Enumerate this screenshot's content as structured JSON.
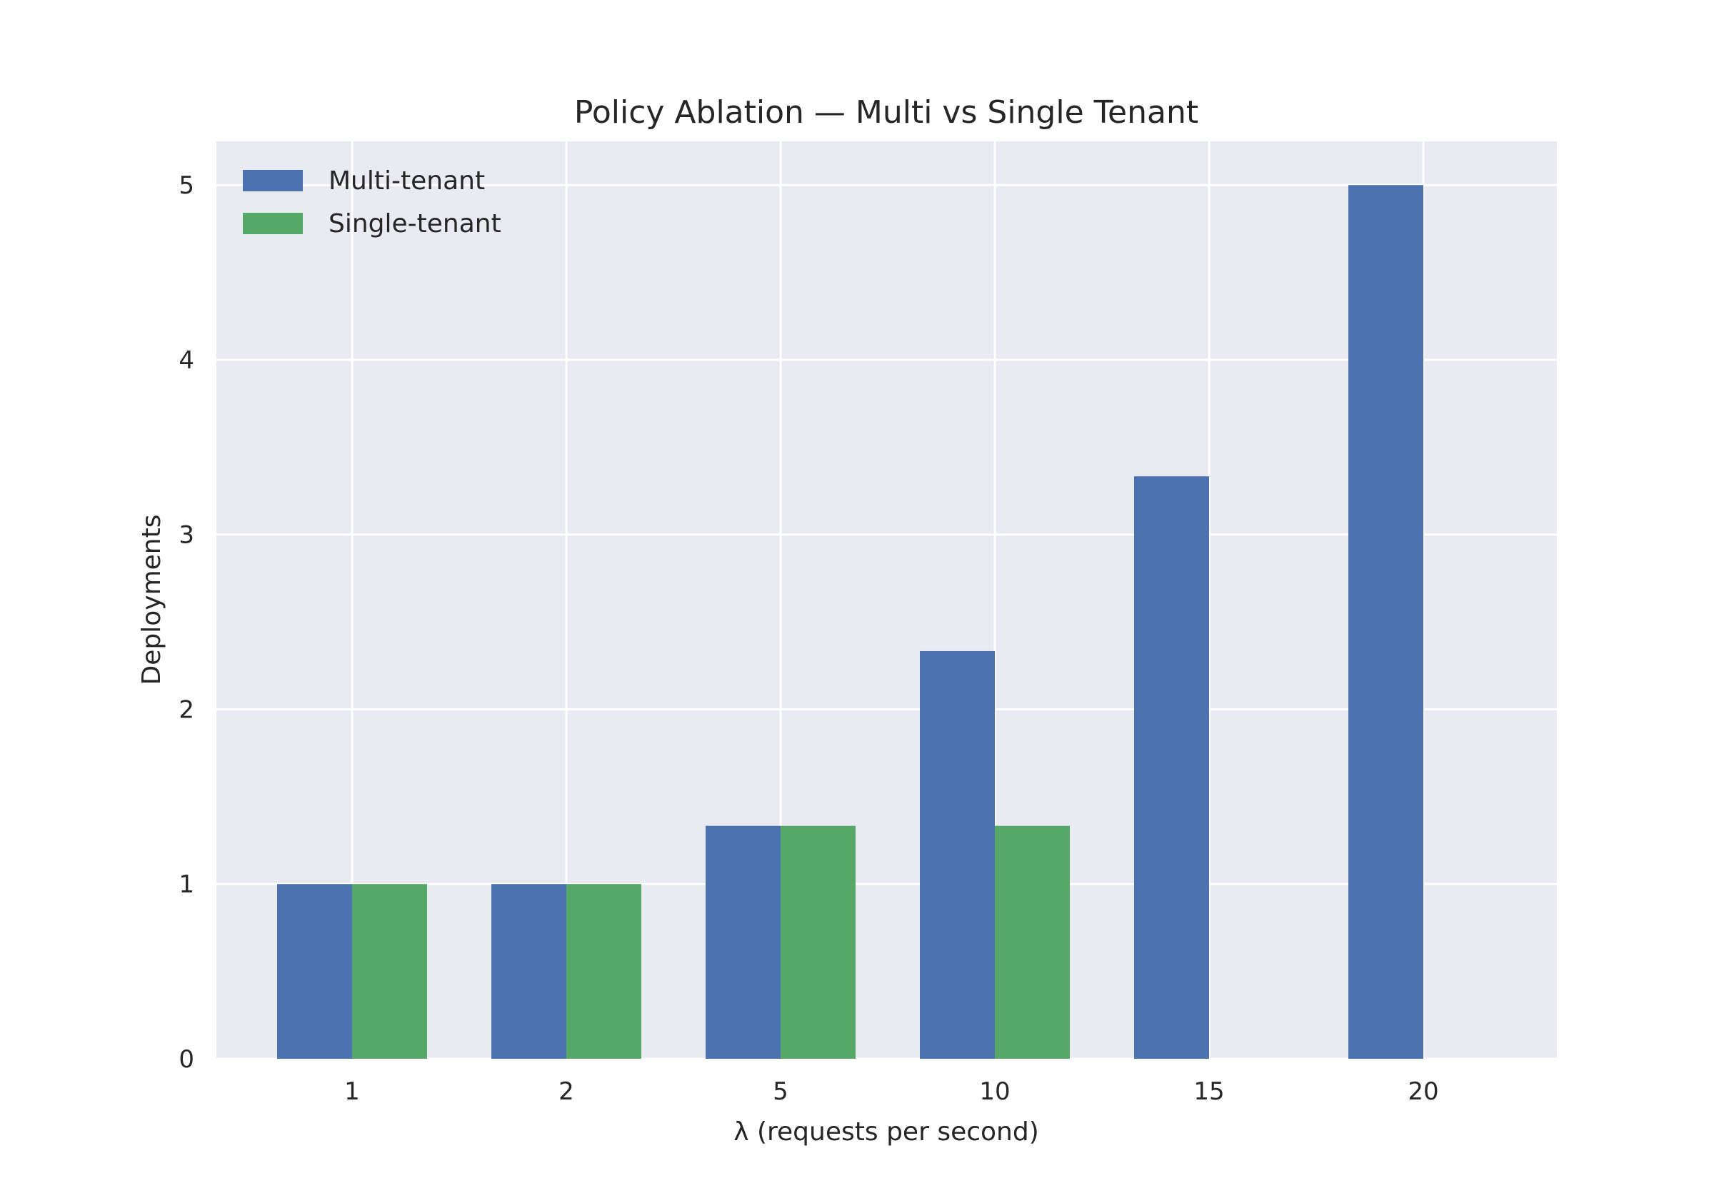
{
  "chart_data": {
    "type": "bar",
    "title": "Policy Ablation — Multi vs Single Tenant",
    "xlabel": "λ (requests per second)",
    "ylabel": "Deployments",
    "categories": [
      "1",
      "2",
      "5",
      "10",
      "15",
      "20"
    ],
    "series": [
      {
        "name": "Multi-tenant",
        "color": "#4C72B0",
        "values": [
          1,
          1,
          1.333,
          2.333,
          3.333,
          5
        ]
      },
      {
        "name": "Single-tenant",
        "color": "#55A868",
        "values": [
          1,
          1,
          1.333,
          1.333,
          0,
          0
        ]
      }
    ],
    "ylim": [
      0,
      5.25
    ],
    "yticks": [
      "0",
      "1",
      "2",
      "3",
      "4",
      "5"
    ],
    "grid": true,
    "legend_position": "top-left",
    "background_color": "#EAEAF2"
  }
}
